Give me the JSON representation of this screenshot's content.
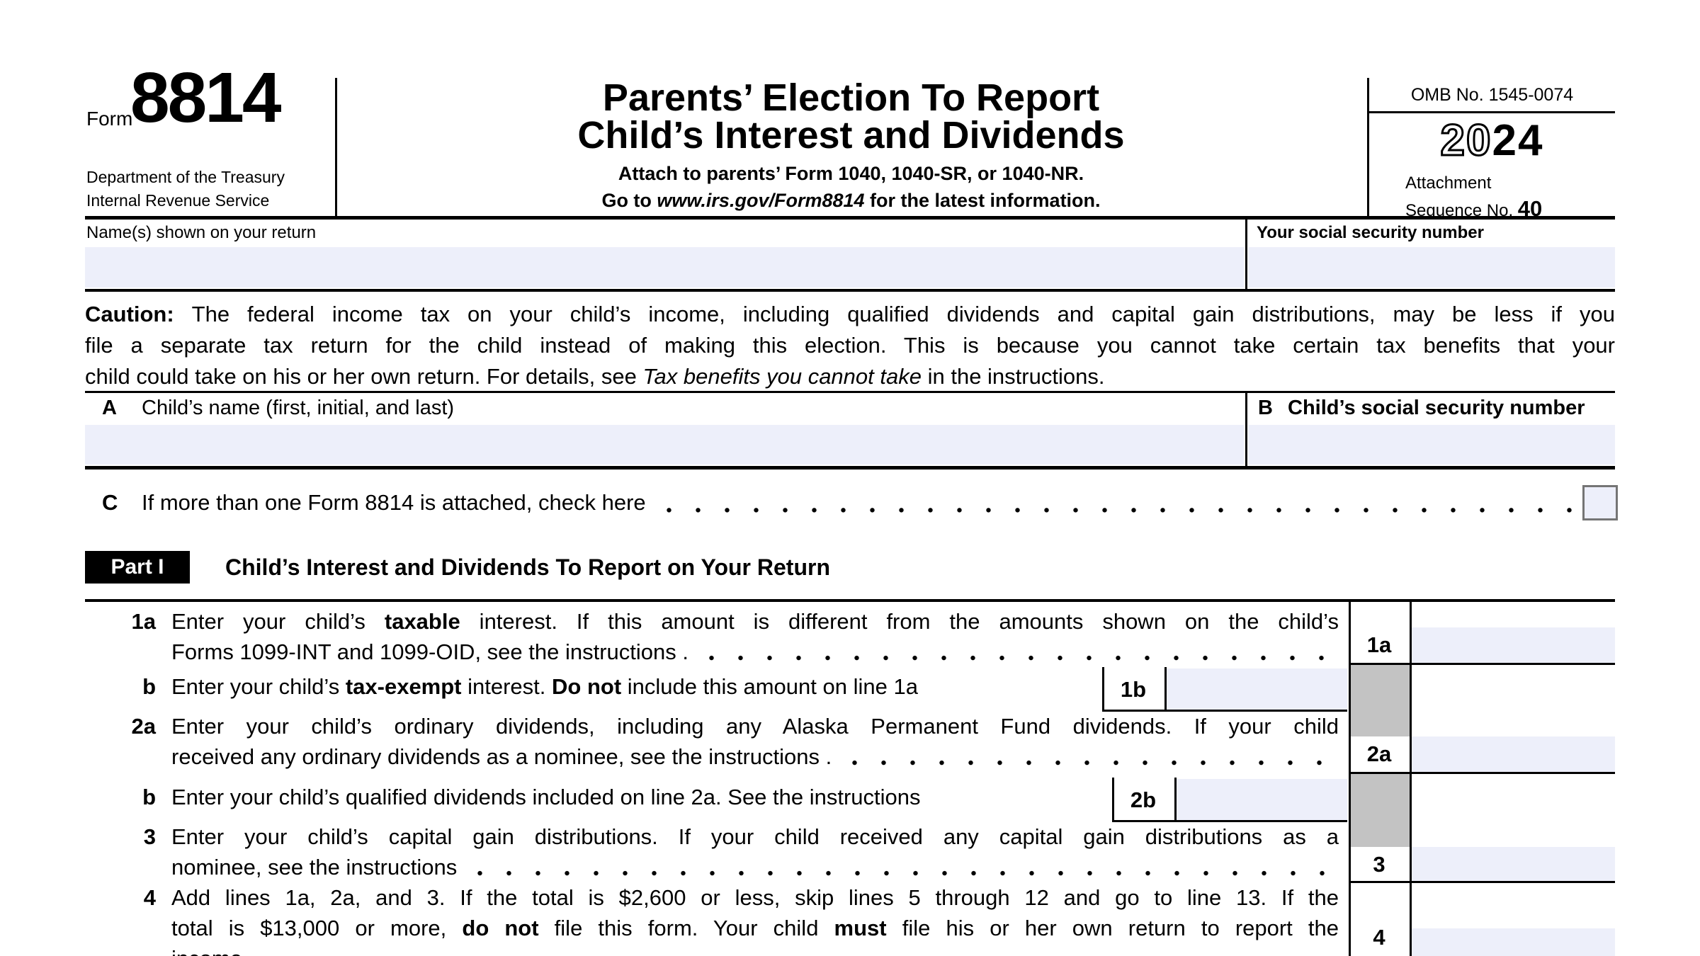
{
  "form": {
    "form_word": "Form",
    "form_number": "8814",
    "agency_line1": "Department of the Treasury",
    "agency_line2": "Internal Revenue Service",
    "title_line1": "Parents’ Election To Report",
    "title_line2": "Child’s Interest and Dividends",
    "attach_line": "Attach to parents’ Form 1040, 1040-SR, or 1040-NR.",
    "goto_line": [
      {
        "t": "Go to ",
        "b": true
      },
      {
        "t": "www.irs.gov/Form8814",
        "b": true,
        "i": true
      },
      {
        "t": " for the latest information.",
        "b": true
      }
    ],
    "omb": "OMB No. 1545-0074",
    "year_outline": "20",
    "year_bold": "24",
    "attachment_label": "Attachment",
    "sequence_label": "Sequence No. ",
    "sequence_number": "40"
  },
  "identity": {
    "name_label": "Name(s) shown on your return",
    "ssn_label": "Your social security number",
    "name_value": "",
    "ssn_value": ""
  },
  "caution": {
    "line1": [
      {
        "t": "Caution: ",
        "b": true
      },
      {
        "t": "The federal income tax on your child’s income, including qualified dividends and capital gain distributions, may be less if you"
      }
    ],
    "line2": [
      {
        "t": "file a separate tax return for the child instead of making this election. This is because you cannot take certain tax benefits that your"
      }
    ],
    "line3": [
      {
        "t": "child could take on his or her own return. For details, see "
      },
      {
        "t": "Tax benefits you cannot take",
        "i": true
      },
      {
        "t": " in the instructions."
      }
    ]
  },
  "child_rows": {
    "a_letter": "A",
    "a_label": "Child’s name (first, initial, and last)",
    "a_value": "",
    "b_letter": "B",
    "b_label": "Child’s social security number",
    "b_value": "",
    "c_letter": "C",
    "c_label": "If more than one Form 8814 is attached, check here"
  },
  "part1": {
    "badge": "Part I",
    "title": "Child’s Interest and Dividends To Report on Your Return",
    "items": [
      {
        "num": "1a",
        "line1": [
          {
            "t": "Enter your child’s "
          },
          {
            "t": "taxable",
            "b": true
          },
          {
            "t": " interest. If this amount is different from the amounts shown on the child’s"
          }
        ],
        "line2": [
          {
            "t": "Forms 1099-INT and 1099-OID, see the instructions ."
          }
        ],
        "right_label": "1a",
        "value": ""
      },
      {
        "num": "b",
        "line1": [
          {
            "t": "Enter your child’s "
          },
          {
            "t": "tax-exempt",
            "b": true
          },
          {
            "t": " interest. "
          },
          {
            "t": "Do not",
            "b": true
          },
          {
            "t": " include this amount on line 1a"
          }
        ],
        "inline_label": "1b",
        "value": ""
      },
      {
        "num": "2a",
        "line1": [
          {
            "t": "Enter your child’s ordinary dividends, including any Alaska Permanent Fund dividends. If your child"
          }
        ],
        "line2": [
          {
            "t": "received any ordinary dividends as a nominee, see the instructions ."
          }
        ],
        "right_label": "2a",
        "value": ""
      },
      {
        "num": "b",
        "line1": [
          {
            "t": "Enter your child’s qualified dividends included on line 2a. See the instructions"
          }
        ],
        "inline_label": "2b",
        "value": ""
      },
      {
        "num": "3",
        "line1": [
          {
            "t": "Enter your child’s capital gain distributions. If your child received any capital gain distributions as a"
          }
        ],
        "line2": [
          {
            "t": "nominee, see the instructions"
          }
        ],
        "right_label": "3",
        "value": ""
      },
      {
        "num": "4",
        "line1": [
          {
            "t": "Add lines 1a, 2a, and 3. If the total is $2,600 or less, skip lines 5 through 12 and go to line 13. If the"
          }
        ],
        "line2": [
          {
            "t": "total is $13,000 or more, "
          },
          {
            "t": "do not",
            "b": true
          },
          {
            "t": " file this form. Your child "
          },
          {
            "t": "must",
            "b": true
          },
          {
            "t": " file his or her own return to report the"
          }
        ],
        "line3": [
          {
            "t": "income"
          }
        ],
        "right_label": "4",
        "value": ""
      }
    ]
  },
  "colors": {
    "entry_field": "#edeffa",
    "shaded_cell": "#c3c3c3",
    "checkbox_border": "#757575",
    "ink": "#000000"
  }
}
